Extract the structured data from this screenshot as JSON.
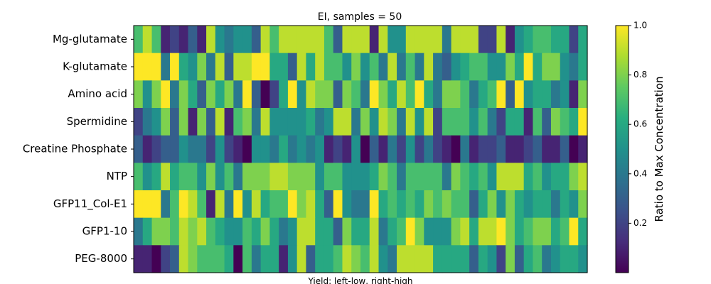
{
  "chart_data": {
    "type": "heatmap",
    "title": "EI, samples = 50",
    "xlabel": "Yield: left-low, right-high",
    "ylabel": "",
    "rows": [
      "Mg-glutamate",
      "K-glutamate",
      "Amino acid",
      "Spermidine",
      "Creatine Phosphate",
      "NTP",
      "GFP11_Col-E1",
      "GFP1-10",
      "PEG-8000"
    ],
    "n_samples": 50,
    "colormap": "viridis",
    "colorbar": {
      "label": "Ratio to Max Concentration",
      "vmin": 0.0,
      "vmax": 1.0,
      "ticks": [
        0.2,
        0.4,
        0.6,
        0.8,
        1.0
      ],
      "tick_labels": [
        "0.2",
        "0.4",
        "0.6",
        "0.8",
        "1.0"
      ]
    },
    "values": [
      [
        0.7,
        0.9,
        0.7,
        0.1,
        0.2,
        0.1,
        0.3,
        0.1,
        0.9,
        0.5,
        0.4,
        0.5,
        0.5,
        0.3,
        0.9,
        0.7,
        0.9,
        0.9,
        0.9,
        0.9,
        0.9,
        0.7,
        0.3,
        0.9,
        0.9,
        0.9,
        0.1,
        0.9,
        0.5,
        0.5,
        0.9,
        0.9,
        0.9,
        0.9,
        0.4,
        0.9,
        0.9,
        0.9,
        0.2,
        0.2,
        0.9,
        0.1,
        0.5,
        0.6,
        0.7,
        0.7,
        0.6,
        0.6,
        0.2,
        0.6
      ],
      [
        1.0,
        1.0,
        1.0,
        0.4,
        1.0,
        0.6,
        0.5,
        0.8,
        0.4,
        0.9,
        0.3,
        0.9,
        0.9,
        1.0,
        1.0,
        0.6,
        0.6,
        0.3,
        0.9,
        0.6,
        0.9,
        0.7,
        0.7,
        0.5,
        0.8,
        0.5,
        0.7,
        0.4,
        0.9,
        0.4,
        0.7,
        0.4,
        0.9,
        0.4,
        0.3,
        0.5,
        0.6,
        0.7,
        0.7,
        0.5,
        0.5,
        0.8,
        0.6,
        1.0,
        0.6,
        0.8,
        0.8,
        0.5,
        0.4,
        0.6
      ],
      [
        0.8,
        0.5,
        0.8,
        1.0,
        0.4,
        0.8,
        0.6,
        0.3,
        0.8,
        0.6,
        0.8,
        0.4,
        1.0,
        0.3,
        0.0,
        0.2,
        0.6,
        1.0,
        0.5,
        0.9,
        0.8,
        0.8,
        0.3,
        0.8,
        0.7,
        0.4,
        1.0,
        0.8,
        0.6,
        0.9,
        0.7,
        1.0,
        0.6,
        0.4,
        0.8,
        0.8,
        0.7,
        0.4,
        0.6,
        0.7,
        1.0,
        0.3,
        1.0,
        0.5,
        0.6,
        0.6,
        0.4,
        0.5,
        0.1,
        0.8
      ],
      [
        0.2,
        0.4,
        0.5,
        0.8,
        0.3,
        0.8,
        0.1,
        0.8,
        0.3,
        0.9,
        0.1,
        0.7,
        0.8,
        0.4,
        0.9,
        0.5,
        0.5,
        0.5,
        0.5,
        0.6,
        0.4,
        0.5,
        0.9,
        0.9,
        0.4,
        0.8,
        0.5,
        0.9,
        0.8,
        0.4,
        0.9,
        0.5,
        0.9,
        0.2,
        0.7,
        0.7,
        0.7,
        0.5,
        0.7,
        0.4,
        0.2,
        0.6,
        0.6,
        0.1,
        0.7,
        0.3,
        0.8,
        0.7,
        0.6,
        1.0
      ],
      [
        0.3,
        0.1,
        0.2,
        0.3,
        0.3,
        0.5,
        0.4,
        0.4,
        0.2,
        0.5,
        0.2,
        0.1,
        0.0,
        0.5,
        0.5,
        0.4,
        0.6,
        0.4,
        0.5,
        0.4,
        0.5,
        0.1,
        0.2,
        0.1,
        0.5,
        0.0,
        0.3,
        0.1,
        0.4,
        0.2,
        0.5,
        0.2,
        0.4,
        0.2,
        0.1,
        0.0,
        0.4,
        0.1,
        0.2,
        0.2,
        0.3,
        0.1,
        0.1,
        0.2,
        0.3,
        0.1,
        0.1,
        0.3,
        0.0,
        0.1
      ],
      [
        0.7,
        0.5,
        0.6,
        0.9,
        0.6,
        0.7,
        0.7,
        0.5,
        0.8,
        0.5,
        0.7,
        0.4,
        0.8,
        0.8,
        0.8,
        0.9,
        0.9,
        0.8,
        0.8,
        0.8,
        0.5,
        0.7,
        0.7,
        0.5,
        0.5,
        0.5,
        0.6,
        0.8,
        0.7,
        0.4,
        0.7,
        0.7,
        0.7,
        0.7,
        0.4,
        0.8,
        0.7,
        0.6,
        0.7,
        0.5,
        0.9,
        0.9,
        0.9,
        0.6,
        0.7,
        0.5,
        0.6,
        0.6,
        0.8,
        0.9
      ],
      [
        1.0,
        1.0,
        1.0,
        0.4,
        0.7,
        1.0,
        0.9,
        0.7,
        0.1,
        0.9,
        0.4,
        1.0,
        0.5,
        0.9,
        0.6,
        0.7,
        0.7,
        1.0,
        0.8,
        0.9,
        0.6,
        0.3,
        1.0,
        0.5,
        0.4,
        0.4,
        1.0,
        0.6,
        0.7,
        0.6,
        0.7,
        0.6,
        0.8,
        0.7,
        0.8,
        0.7,
        0.7,
        0.3,
        0.6,
        0.8,
        0.5,
        0.8,
        0.6,
        0.5,
        0.6,
        0.6,
        0.4,
        0.6,
        0.5,
        0.8
      ],
      [
        0.4,
        0.6,
        0.8,
        0.8,
        0.7,
        0.9,
        0.8,
        0.9,
        0.7,
        0.6,
        0.5,
        0.5,
        0.7,
        0.6,
        0.8,
        0.6,
        0.4,
        0.5,
        0.9,
        0.9,
        0.6,
        0.6,
        0.3,
        0.8,
        0.6,
        0.6,
        0.9,
        0.4,
        0.6,
        0.7,
        1.0,
        0.8,
        0.5,
        0.5,
        0.5,
        0.8,
        0.9,
        0.6,
        0.9,
        0.9,
        1.0,
        0.8,
        0.6,
        0.7,
        0.8,
        0.8,
        0.6,
        0.7,
        1.0,
        0.6
      ],
      [
        0.1,
        0.1,
        0.0,
        0.2,
        0.3,
        0.9,
        0.8,
        0.7,
        0.7,
        0.7,
        0.6,
        0.0,
        0.7,
        0.4,
        0.6,
        0.6,
        0.1,
        0.5,
        0.9,
        0.3,
        0.6,
        0.6,
        0.7,
        0.9,
        0.8,
        0.7,
        0.9,
        0.5,
        0.4,
        0.9,
        0.9,
        0.9,
        0.9,
        0.6,
        0.6,
        0.6,
        0.6,
        0.3,
        0.6,
        0.5,
        0.2,
        0.8,
        0.3,
        0.6,
        0.7,
        0.4,
        0.5,
        0.6,
        0.6,
        0.5
      ]
    ]
  }
}
